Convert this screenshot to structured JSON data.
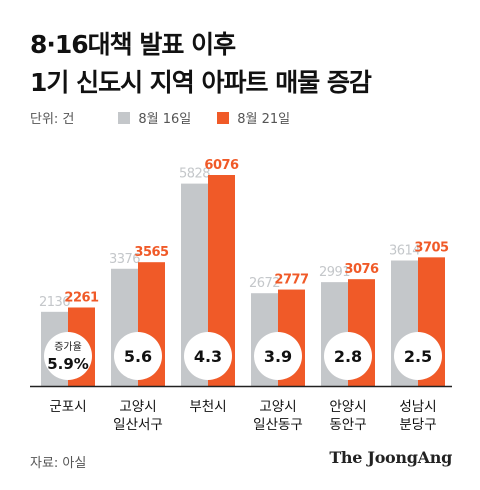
{
  "title_line1": "8·16대책 발표 이후",
  "title_line2": "1기 신도시 지역 아파트 매물 증감",
  "unit_label": "단위: 건",
  "colors": {
    "before": "#c4c7ca",
    "after": "#f05a28",
    "axis": "#222222"
  },
  "source": "자료: 아실",
  "brand": "The JoongAng",
  "rate_label": "증가율",
  "chart_data": {
    "type": "bar",
    "title": "8·16대책 발표 이후 1기 신도시 지역 아파트 매물 증감",
    "categories": [
      [
        "군포시"
      ],
      [
        "고양시",
        "일산서구"
      ],
      [
        "부천시"
      ],
      [
        "고양시",
        "일산동구"
      ],
      [
        "안양시",
        "동안구"
      ],
      [
        "성남시",
        "분당구"
      ]
    ],
    "series": [
      {
        "name": "8월 16일",
        "values": [
          2136,
          3376,
          5828,
          2672,
          2991,
          3614
        ]
      },
      {
        "name": "8월 21일",
        "values": [
          2261,
          3565,
          6076,
          2777,
          3076,
          3705
        ]
      }
    ],
    "growth_rates": [
      "5.9%",
      "5.6",
      "4.3",
      "3.9",
      "2.8",
      "2.5"
    ],
    "ylabel": "",
    "xlabel": "",
    "ylim": [
      0,
      6500
    ],
    "legend_position": "top-left",
    "grid": false
  }
}
